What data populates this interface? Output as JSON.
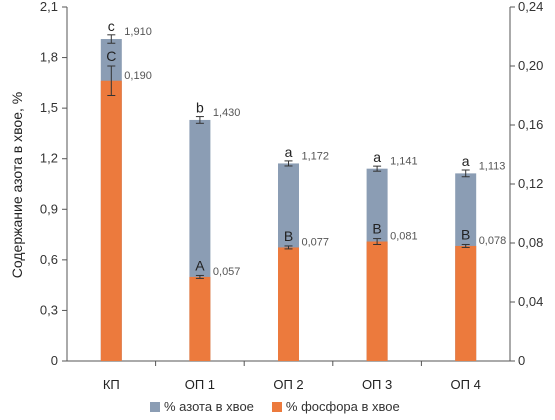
{
  "chart_data": {
    "type": "bar",
    "categories": [
      "КП",
      "ОП 1",
      "ОП 2",
      "ОП 3",
      "ОП 4"
    ],
    "ylabel": "Содержание азота в хвое, %",
    "ylim": [
      0,
      2.1
    ],
    "y2lim": [
      0,
      0.24
    ],
    "yticks": [
      "0",
      "0,3",
      "0,6",
      "0,9",
      "1,2",
      "1,5",
      "1,8",
      "2,1"
    ],
    "y2ticks": [
      "0",
      "0,04",
      "0,08",
      "0,12",
      "0,16",
      "0,20",
      "0,24"
    ],
    "series": [
      {
        "name": "% азота в хвое",
        "axis": "left",
        "color": "#8b9db4",
        "values": [
          1.91,
          1.43,
          1.172,
          1.141,
          1.113
        ],
        "errors": [
          0.025,
          0.02,
          0.015,
          0.015,
          0.02
        ],
        "labels": [
          "1,910",
          "1,430",
          "1,172",
          "1,141",
          "1,113"
        ],
        "significance": [
          "c",
          "b",
          "a",
          "a",
          "a"
        ]
      },
      {
        "name": "% фосфора в хвое",
        "axis": "right",
        "color": "#ec7a3d",
        "values": [
          0.19,
          0.057,
          0.077,
          0.081,
          0.078
        ],
        "errors": [
          0.01,
          0.001,
          0.001,
          0.002,
          0.001
        ],
        "labels": [
          "0,190",
          "0,057",
          "0,077",
          "0,081",
          "0,078"
        ],
        "significance": [
          "C",
          "A",
          "B",
          "B",
          "B"
        ]
      }
    ],
    "grid": false,
    "legend_position": "bottom"
  }
}
